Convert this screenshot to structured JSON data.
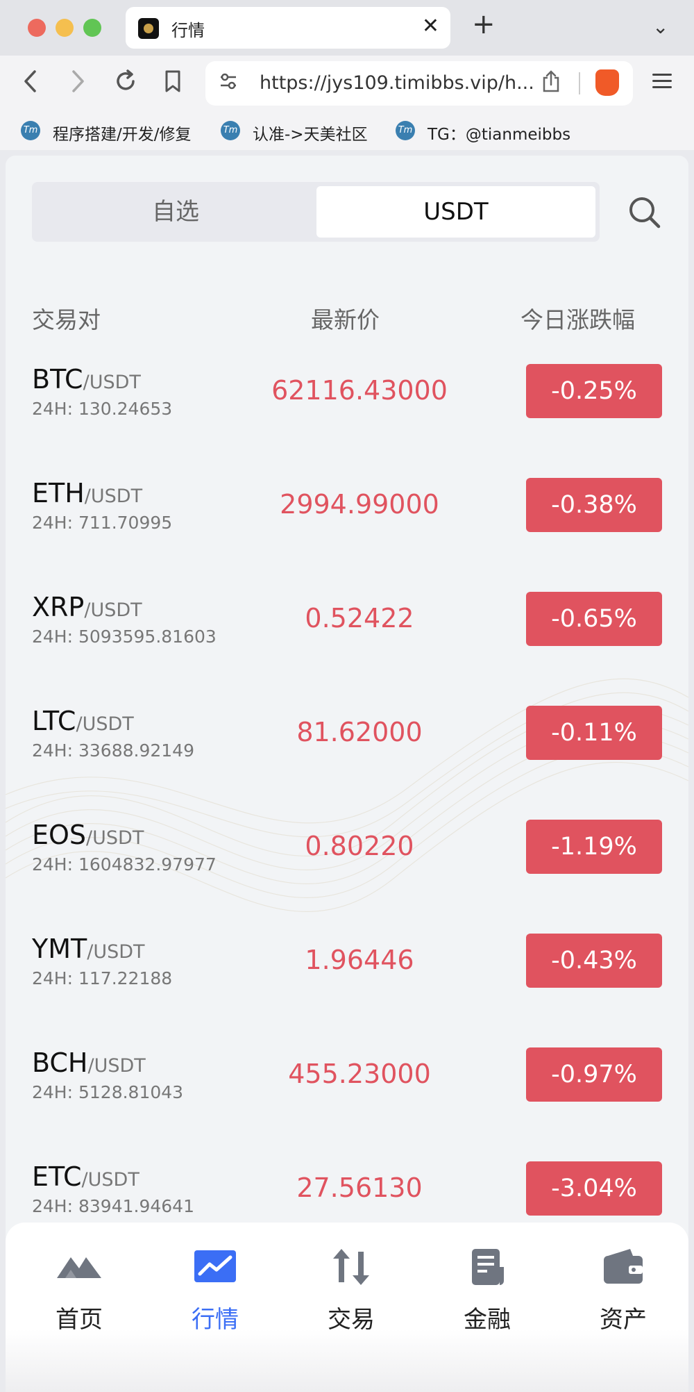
{
  "browser": {
    "tab_title": "行情",
    "url": "https://jys109.timibbs.vip/h...",
    "bookmarks": [
      {
        "label": "程序搭建/开发/修复"
      },
      {
        "label": "认准->天美社区"
      },
      {
        "label": "TG：@tianmeibbs"
      }
    ]
  },
  "tabs": {
    "favorites_label": "自选",
    "usdt_label": "USDT"
  },
  "table": {
    "headers": {
      "pair": "交易对",
      "price": "最新价",
      "change": "今日涨跌幅"
    },
    "rows": [
      {
        "base": "BTC",
        "quote": "/USDT",
        "vol": "24H: 130.24653",
        "price": "62116.43000",
        "change": "-0.25%"
      },
      {
        "base": "ETH",
        "quote": "/USDT",
        "vol": "24H: 711.70995",
        "price": "2994.99000",
        "change": "-0.38%"
      },
      {
        "base": "XRP",
        "quote": "/USDT",
        "vol": "24H: 5093595.81603",
        "price": "0.52422",
        "change": "-0.65%"
      },
      {
        "base": "LTC",
        "quote": "/USDT",
        "vol": "24H: 33688.92149",
        "price": "81.62000",
        "change": "-0.11%"
      },
      {
        "base": "EOS",
        "quote": "/USDT",
        "vol": "24H: 1604832.97977",
        "price": "0.80220",
        "change": "-1.19%"
      },
      {
        "base": "YMT",
        "quote": "/USDT",
        "vol": "24H: 117.22188",
        "price": "1.96446",
        "change": "-0.43%"
      },
      {
        "base": "BCH",
        "quote": "/USDT",
        "vol": "24H: 5128.81043",
        "price": "455.23000",
        "change": "-0.97%"
      },
      {
        "base": "ETC",
        "quote": "/USDT",
        "vol": "24H: 83941.94641",
        "price": "27.56130",
        "change": "-3.04%"
      }
    ]
  },
  "nav": {
    "items": [
      {
        "label": "首页",
        "icon": "mountain-icon"
      },
      {
        "label": "行情",
        "icon": "chart-icon"
      },
      {
        "label": "交易",
        "icon": "transfer-arrows-icon"
      },
      {
        "label": "金融",
        "icon": "document-icon"
      },
      {
        "label": "资产",
        "icon": "wallet-icon"
      }
    ]
  },
  "colors": {
    "down": "#e0535f",
    "active_nav": "#3b6ef5"
  }
}
